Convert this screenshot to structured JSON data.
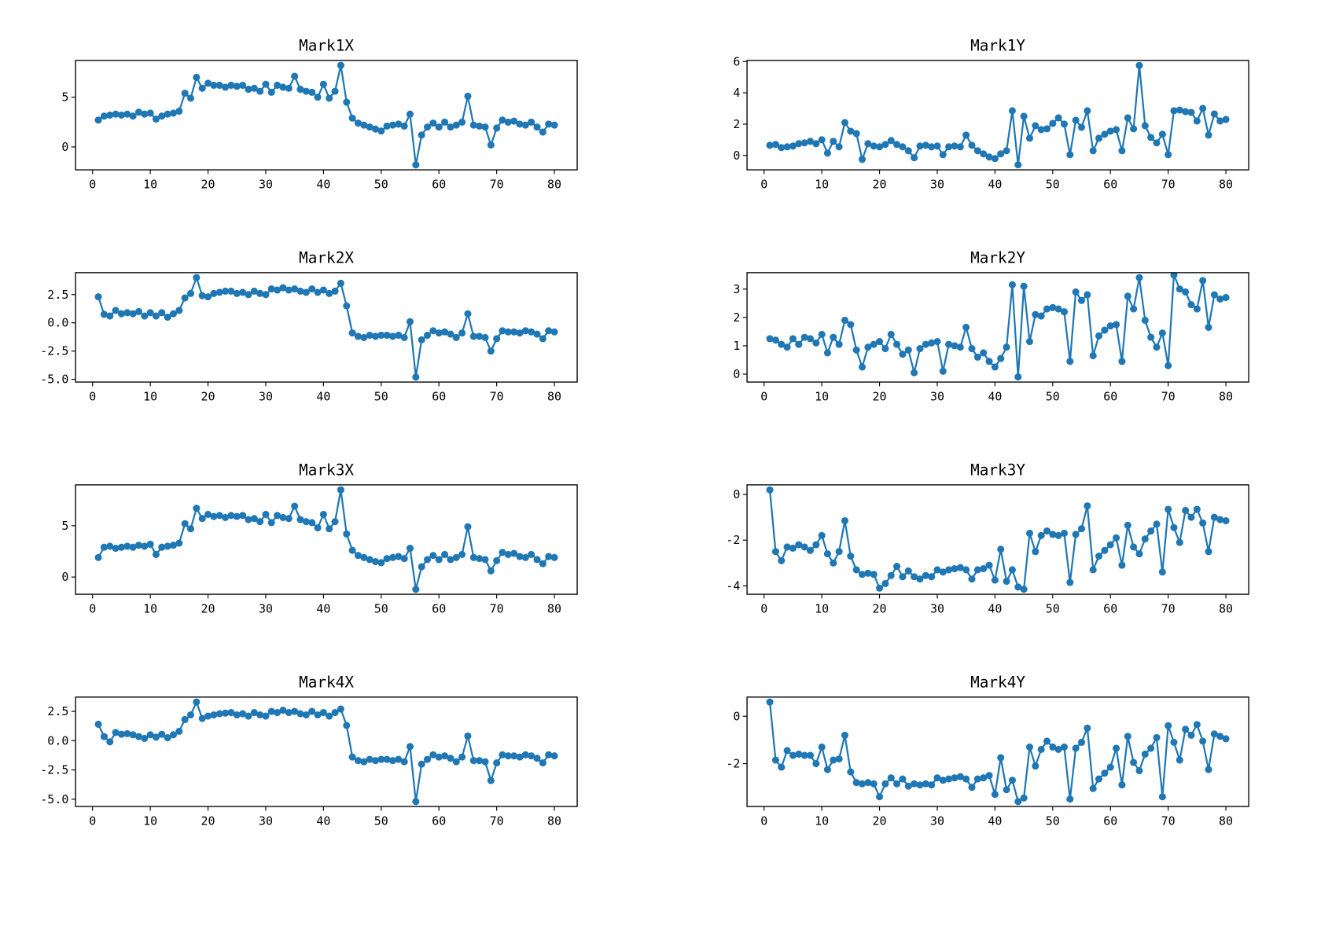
{
  "figure": {
    "background": "#ffffff",
    "line_color": "#1f77b4",
    "marker": "circle",
    "grid": false,
    "legend": "none"
  },
  "chart_data": [
    {
      "type": "line",
      "title": "Mark1X",
      "xlabel": "",
      "ylabel": "",
      "x_start": 1,
      "x_step": 1,
      "xlim": [
        -2.95,
        83.95
      ],
      "ylim": [
        -2.3,
        8.7
      ],
      "xticks": [
        0,
        10,
        20,
        30,
        40,
        50,
        60,
        70,
        80
      ],
      "ytick_values": [
        0,
        5
      ],
      "ytick_labels": [
        "0",
        "5"
      ],
      "values": [
        2.7,
        3.1,
        3.2,
        3.3,
        3.2,
        3.3,
        3.1,
        3.5,
        3.3,
        3.4,
        2.8,
        3.1,
        3.3,
        3.4,
        3.6,
        5.4,
        4.9,
        7.0,
        5.9,
        6.4,
        6.2,
        6.2,
        6.0,
        6.2,
        6.1,
        6.2,
        5.8,
        5.9,
        5.6,
        6.3,
        5.5,
        6.2,
        6.0,
        5.9,
        7.1,
        5.8,
        5.6,
        5.5,
        5.0,
        6.3,
        4.9,
        5.6,
        8.2,
        4.5,
        2.9,
        2.4,
        2.2,
        2.0,
        1.8,
        1.6,
        2.1,
        2.2,
        2.3,
        2.1,
        3.3,
        -1.8,
        1.2,
        2.0,
        2.4,
        2.0,
        2.5,
        2.0,
        2.2,
        2.5,
        5.1,
        2.2,
        2.1,
        2.0,
        0.2,
        1.9,
        2.7,
        2.5,
        2.6,
        2.3,
        2.2,
        2.5,
        2.0,
        1.5,
        2.3,
        2.2
      ]
    },
    {
      "type": "line",
      "title": "Mark1Y",
      "xlabel": "",
      "ylabel": "",
      "x_start": 1,
      "x_step": 1,
      "xlim": [
        -2.95,
        83.95
      ],
      "ylim": [
        -0.92,
        6.07
      ],
      "xticks": [
        0,
        10,
        20,
        30,
        40,
        50,
        60,
        70,
        80
      ],
      "ytick_values": [
        0,
        2,
        4,
        6
      ],
      "ytick_labels": [
        "0",
        "2",
        "4",
        "6"
      ],
      "values": [
        0.65,
        0.7,
        0.5,
        0.55,
        0.6,
        0.75,
        0.8,
        0.9,
        0.75,
        1.0,
        0.15,
        0.9,
        0.55,
        2.1,
        1.55,
        1.4,
        -0.25,
        0.75,
        0.6,
        0.55,
        0.7,
        0.95,
        0.7,
        0.55,
        0.3,
        -0.15,
        0.6,
        0.65,
        0.55,
        0.6,
        0.05,
        0.55,
        0.6,
        0.55,
        1.3,
        0.65,
        0.3,
        0.1,
        -0.1,
        -0.2,
        0.1,
        0.3,
        2.85,
        -0.6,
        2.5,
        1.1,
        1.9,
        1.65,
        1.7,
        2.05,
        2.4,
        2.0,
        0.05,
        2.25,
        1.8,
        2.85,
        0.3,
        1.1,
        1.35,
        1.55,
        1.65,
        0.3,
        2.4,
        1.7,
        5.75,
        1.9,
        1.15,
        0.8,
        1.35,
        0.05,
        2.85,
        2.9,
        2.8,
        2.75,
        2.2,
        3.0,
        1.3,
        2.65,
        2.2,
        2.3
      ]
    },
    {
      "type": "line",
      "title": "Mark2X",
      "xlabel": "",
      "ylabel": "",
      "x_start": 1,
      "x_step": 1,
      "xlim": [
        -2.95,
        83.95
      ],
      "ylim": [
        -5.24,
        4.44
      ],
      "xticks": [
        0,
        10,
        20,
        30,
        40,
        50,
        60,
        70,
        80
      ],
      "ytick_values": [
        -5.0,
        -2.5,
        0.0,
        2.5
      ],
      "ytick_labels": [
        "-5.0",
        "-2.5",
        "0.0",
        "2.5"
      ],
      "values": [
        2.3,
        0.75,
        0.6,
        1.1,
        0.8,
        0.9,
        0.8,
        1.0,
        0.6,
        0.9,
        0.6,
        0.9,
        0.5,
        0.8,
        1.1,
        2.2,
        2.6,
        4.0,
        2.4,
        2.3,
        2.6,
        2.7,
        2.8,
        2.8,
        2.6,
        2.7,
        2.5,
        2.8,
        2.6,
        2.5,
        3.0,
        2.9,
        3.1,
        2.9,
        3.0,
        2.8,
        2.7,
        3.0,
        2.7,
        2.9,
        2.6,
        2.8,
        3.5,
        1.5,
        -0.9,
        -1.2,
        -1.3,
        -1.1,
        -1.2,
        -1.1,
        -1.1,
        -1.2,
        -1.1,
        -1.3,
        0.1,
        -4.8,
        -1.5,
        -1.1,
        -0.7,
        -0.9,
        -0.8,
        -1.0,
        -1.3,
        -0.9,
        0.8,
        -1.2,
        -1.2,
        -1.3,
        -2.5,
        -1.4,
        -0.7,
        -0.8,
        -0.8,
        -0.9,
        -0.7,
        -0.8,
        -1.0,
        -1.4,
        -0.7,
        -0.8
      ]
    },
    {
      "type": "line",
      "title": "Mark2Y",
      "xlabel": "",
      "ylabel": "",
      "x_start": 1,
      "x_step": 1,
      "xlim": [
        -2.95,
        83.95
      ],
      "ylim": [
        -0.28,
        3.58
      ],
      "xticks": [
        0,
        10,
        20,
        30,
        40,
        50,
        60,
        70,
        80
      ],
      "ytick_values": [
        0,
        1,
        2,
        3
      ],
      "ytick_labels": [
        "0",
        "1",
        "2",
        "3"
      ],
      "values": [
        1.25,
        1.2,
        1.05,
        0.95,
        1.25,
        1.05,
        1.3,
        1.25,
        1.1,
        1.4,
        0.75,
        1.3,
        1.05,
        1.9,
        1.75,
        0.85,
        0.25,
        0.95,
        1.05,
        1.15,
        0.9,
        1.4,
        1.05,
        0.7,
        0.85,
        0.05,
        0.9,
        1.05,
        1.1,
        1.15,
        0.1,
        1.05,
        1.0,
        0.95,
        1.65,
        0.9,
        0.6,
        0.75,
        0.45,
        0.25,
        0.55,
        0.95,
        3.15,
        -0.1,
        3.1,
        1.15,
        2.1,
        2.05,
        2.3,
        2.35,
        2.3,
        2.2,
        0.45,
        2.9,
        2.6,
        2.8,
        0.65,
        1.35,
        1.55,
        1.7,
        1.75,
        0.45,
        2.75,
        2.3,
        3.4,
        1.9,
        1.3,
        0.95,
        1.45,
        0.3,
        3.5,
        3.0,
        2.9,
        2.45,
        2.3,
        3.3,
        1.65,
        2.8,
        2.65,
        2.7
      ]
    },
    {
      "type": "line",
      "title": "Mark3X",
      "xlabel": "",
      "ylabel": "",
      "x_start": 1,
      "x_step": 1,
      "xlim": [
        -2.95,
        83.95
      ],
      "ylim": [
        -1.68,
        8.98
      ],
      "xticks": [
        0,
        10,
        20,
        30,
        40,
        50,
        60,
        70,
        80
      ],
      "ytick_values": [
        0,
        5
      ],
      "ytick_labels": [
        "0",
        "5"
      ],
      "values": [
        1.9,
        2.9,
        3.0,
        2.8,
        2.9,
        3.0,
        2.9,
        3.1,
        3.0,
        3.2,
        2.2,
        2.9,
        3.0,
        3.1,
        3.3,
        5.2,
        4.7,
        6.7,
        5.7,
        6.1,
        5.9,
        6.0,
        5.8,
        6.0,
        5.9,
        6.0,
        5.6,
        5.7,
        5.4,
        6.1,
        5.3,
        6.0,
        5.8,
        5.7,
        6.9,
        5.6,
        5.4,
        5.3,
        4.8,
        6.1,
        4.7,
        5.4,
        8.5,
        4.2,
        2.6,
        2.1,
        1.9,
        1.7,
        1.5,
        1.4,
        1.8,
        1.9,
        2.0,
        1.8,
        2.8,
        -1.2,
        1.0,
        1.7,
        2.1,
        1.7,
        2.2,
        1.7,
        1.9,
        2.2,
        4.9,
        1.9,
        1.8,
        1.7,
        0.6,
        1.6,
        2.4,
        2.2,
        2.3,
        2.0,
        1.9,
        2.2,
        1.7,
        1.3,
        2.0,
        1.9
      ]
    },
    {
      "type": "line",
      "title": "Mark3Y",
      "xlabel": "",
      "ylabel": "",
      "x_start": 1,
      "x_step": 1,
      "xlim": [
        -2.95,
        83.95
      ],
      "ylim": [
        -4.37,
        0.42
      ],
      "xticks": [
        0,
        10,
        20,
        30,
        40,
        50,
        60,
        70,
        80
      ],
      "ytick_values": [
        -4,
        -2,
        0
      ],
      "ytick_labels": [
        "-4",
        "-2",
        "0"
      ],
      "values": [
        0.2,
        -2.5,
        -2.9,
        -2.3,
        -2.35,
        -2.2,
        -2.3,
        -2.45,
        -2.2,
        -1.8,
        -2.6,
        -3.0,
        -2.5,
        -1.15,
        -2.7,
        -3.3,
        -3.5,
        -3.45,
        -3.5,
        -4.1,
        -3.9,
        -3.55,
        -3.15,
        -3.6,
        -3.35,
        -3.6,
        -3.7,
        -3.55,
        -3.6,
        -3.3,
        -3.4,
        -3.3,
        -3.25,
        -3.2,
        -3.3,
        -3.7,
        -3.3,
        -3.25,
        -3.1,
        -3.75,
        -2.4,
        -3.8,
        -3.3,
        -4.05,
        -4.15,
        -1.7,
        -2.5,
        -1.8,
        -1.6,
        -1.75,
        -1.8,
        -1.7,
        -3.85,
        -1.75,
        -1.5,
        -0.5,
        -3.3,
        -2.7,
        -2.45,
        -2.2,
        -1.9,
        -3.1,
        -1.35,
        -2.3,
        -2.6,
        -1.95,
        -1.6,
        -1.3,
        -3.4,
        -0.65,
        -1.45,
        -2.1,
        -0.7,
        -1.0,
        -0.65,
        -1.25,
        -2.5,
        -1.0,
        -1.1,
        -1.15
      ]
    },
    {
      "type": "line",
      "title": "Mark4X",
      "xlabel": "",
      "ylabel": "",
      "x_start": 1,
      "x_step": 1,
      "xlim": [
        -2.95,
        83.95
      ],
      "ylim": [
        -5.62,
        3.72
      ],
      "xticks": [
        0,
        10,
        20,
        30,
        40,
        50,
        60,
        70,
        80
      ],
      "ytick_values": [
        -5.0,
        -2.5,
        0.0,
        2.5
      ],
      "ytick_labels": [
        "-5.0",
        "-2.5",
        "0.0",
        "2.5"
      ],
      "values": [
        1.4,
        0.35,
        -0.1,
        0.7,
        0.55,
        0.6,
        0.5,
        0.35,
        0.2,
        0.5,
        0.3,
        0.55,
        0.25,
        0.5,
        0.8,
        1.8,
        2.2,
        3.3,
        1.9,
        2.1,
        2.2,
        2.3,
        2.35,
        2.4,
        2.2,
        2.3,
        2.1,
        2.4,
        2.2,
        2.1,
        2.5,
        2.4,
        2.6,
        2.4,
        2.5,
        2.3,
        2.2,
        2.5,
        2.2,
        2.4,
        2.1,
        2.4,
        2.7,
        1.3,
        -1.4,
        -1.7,
        -1.8,
        -1.6,
        -1.7,
        -1.6,
        -1.6,
        -1.7,
        -1.6,
        -1.8,
        -0.5,
        -5.2,
        -2.0,
        -1.6,
        -1.2,
        -1.4,
        -1.3,
        -1.5,
        -1.8,
        -1.4,
        0.4,
        -1.7,
        -1.7,
        -1.8,
        -3.4,
        -1.9,
        -1.2,
        -1.3,
        -1.3,
        -1.4,
        -1.2,
        -1.3,
        -1.5,
        -1.9,
        -1.2,
        -1.3
      ]
    },
    {
      "type": "line",
      "title": "Mark4Y",
      "xlabel": "",
      "ylabel": "",
      "x_start": 1,
      "x_step": 1,
      "xlim": [
        -2.95,
        83.95
      ],
      "ylim": [
        -3.81,
        0.81
      ],
      "xticks": [
        0,
        10,
        20,
        30,
        40,
        50,
        60,
        70,
        80
      ],
      "ytick_values": [
        -2,
        0
      ],
      "ytick_labels": [
        "-2",
        "0"
      ],
      "values": [
        0.6,
        -1.85,
        -2.15,
        -1.45,
        -1.65,
        -1.6,
        -1.65,
        -1.65,
        -2.0,
        -1.3,
        -2.25,
        -1.85,
        -1.8,
        -0.8,
        -2.35,
        -2.8,
        -2.85,
        -2.8,
        -2.85,
        -3.4,
        -2.85,
        -2.6,
        -2.85,
        -2.65,
        -2.95,
        -2.85,
        -2.9,
        -2.85,
        -2.9,
        -2.6,
        -2.7,
        -2.65,
        -2.6,
        -2.55,
        -2.65,
        -3.0,
        -2.65,
        -2.6,
        -2.5,
        -3.3,
        -1.75,
        -3.1,
        -2.7,
        -3.6,
        -3.45,
        -1.3,
        -2.1,
        -1.4,
        -1.05,
        -1.3,
        -1.4,
        -1.3,
        -3.5,
        -1.35,
        -1.1,
        -0.5,
        -3.05,
        -2.65,
        -2.4,
        -2.15,
        -1.35,
        -2.9,
        -0.85,
        -1.95,
        -2.3,
        -1.6,
        -1.35,
        -0.9,
        -3.4,
        -0.4,
        -1.1,
        -1.85,
        -0.55,
        -0.8,
        -0.35,
        -1.05,
        -2.25,
        -0.75,
        -0.85,
        -0.95
      ]
    }
  ]
}
